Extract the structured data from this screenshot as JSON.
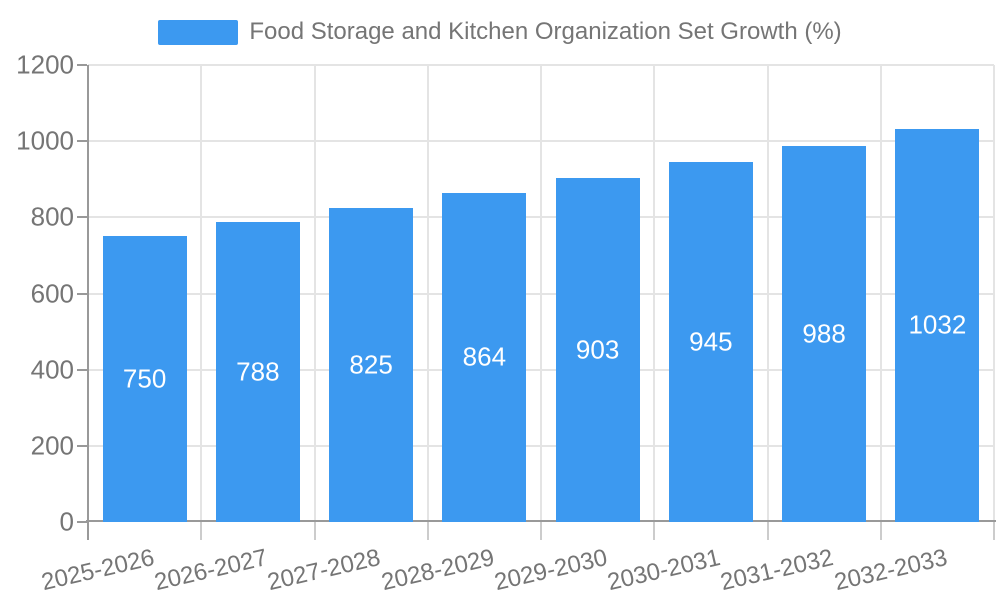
{
  "legend": {
    "position": "top"
  },
  "chart_data": {
    "type": "bar",
    "title": "Food Storage and Kitchen Organization Set Growth (%)",
    "categories": [
      "2025-2026",
      "2026-2027",
      "2027-2028",
      "2028-2029",
      "2029-2030",
      "2030-2031",
      "2031-2032",
      "2032-2033"
    ],
    "values": [
      750,
      788,
      825,
      864,
      903,
      945,
      988,
      1032
    ],
    "xlabel": "",
    "ylabel": "",
    "ylim": [
      0,
      1200
    ],
    "yticks": [
      0,
      200,
      400,
      600,
      800,
      1000,
      1200
    ],
    "grid": true,
    "legend_position": "top",
    "value_labels": "inside-center"
  },
  "colors": {
    "bar": "#3C99F0",
    "value_label": "#FFFFFF",
    "axis": "#999999",
    "grid": "#E4E4E4",
    "x_tick": "#CCCCCC",
    "text": "#757575"
  }
}
